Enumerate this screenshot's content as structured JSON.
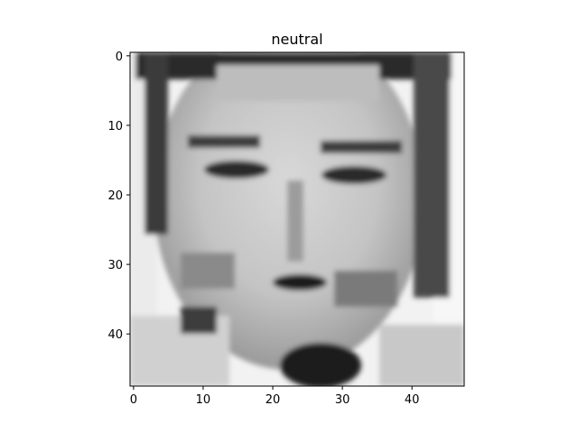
{
  "chart_data": {
    "type": "heatmap",
    "title": "neutral",
    "xlabel": "",
    "ylabel": "",
    "colormap": "gray",
    "image_size": [
      48,
      48
    ],
    "xlim": [
      -0.5,
      47.5
    ],
    "ylim": [
      47.5,
      -0.5
    ],
    "x_ticks": [
      0,
      10,
      20,
      30,
      40
    ],
    "y_ticks": [
      0,
      10,
      20,
      30,
      40
    ],
    "x_tick_labels": [
      "0",
      "10",
      "20",
      "30",
      "40"
    ],
    "y_tick_labels": [
      "0",
      "10",
      "20",
      "30",
      "40"
    ],
    "grid": false,
    "legend": "none"
  }
}
